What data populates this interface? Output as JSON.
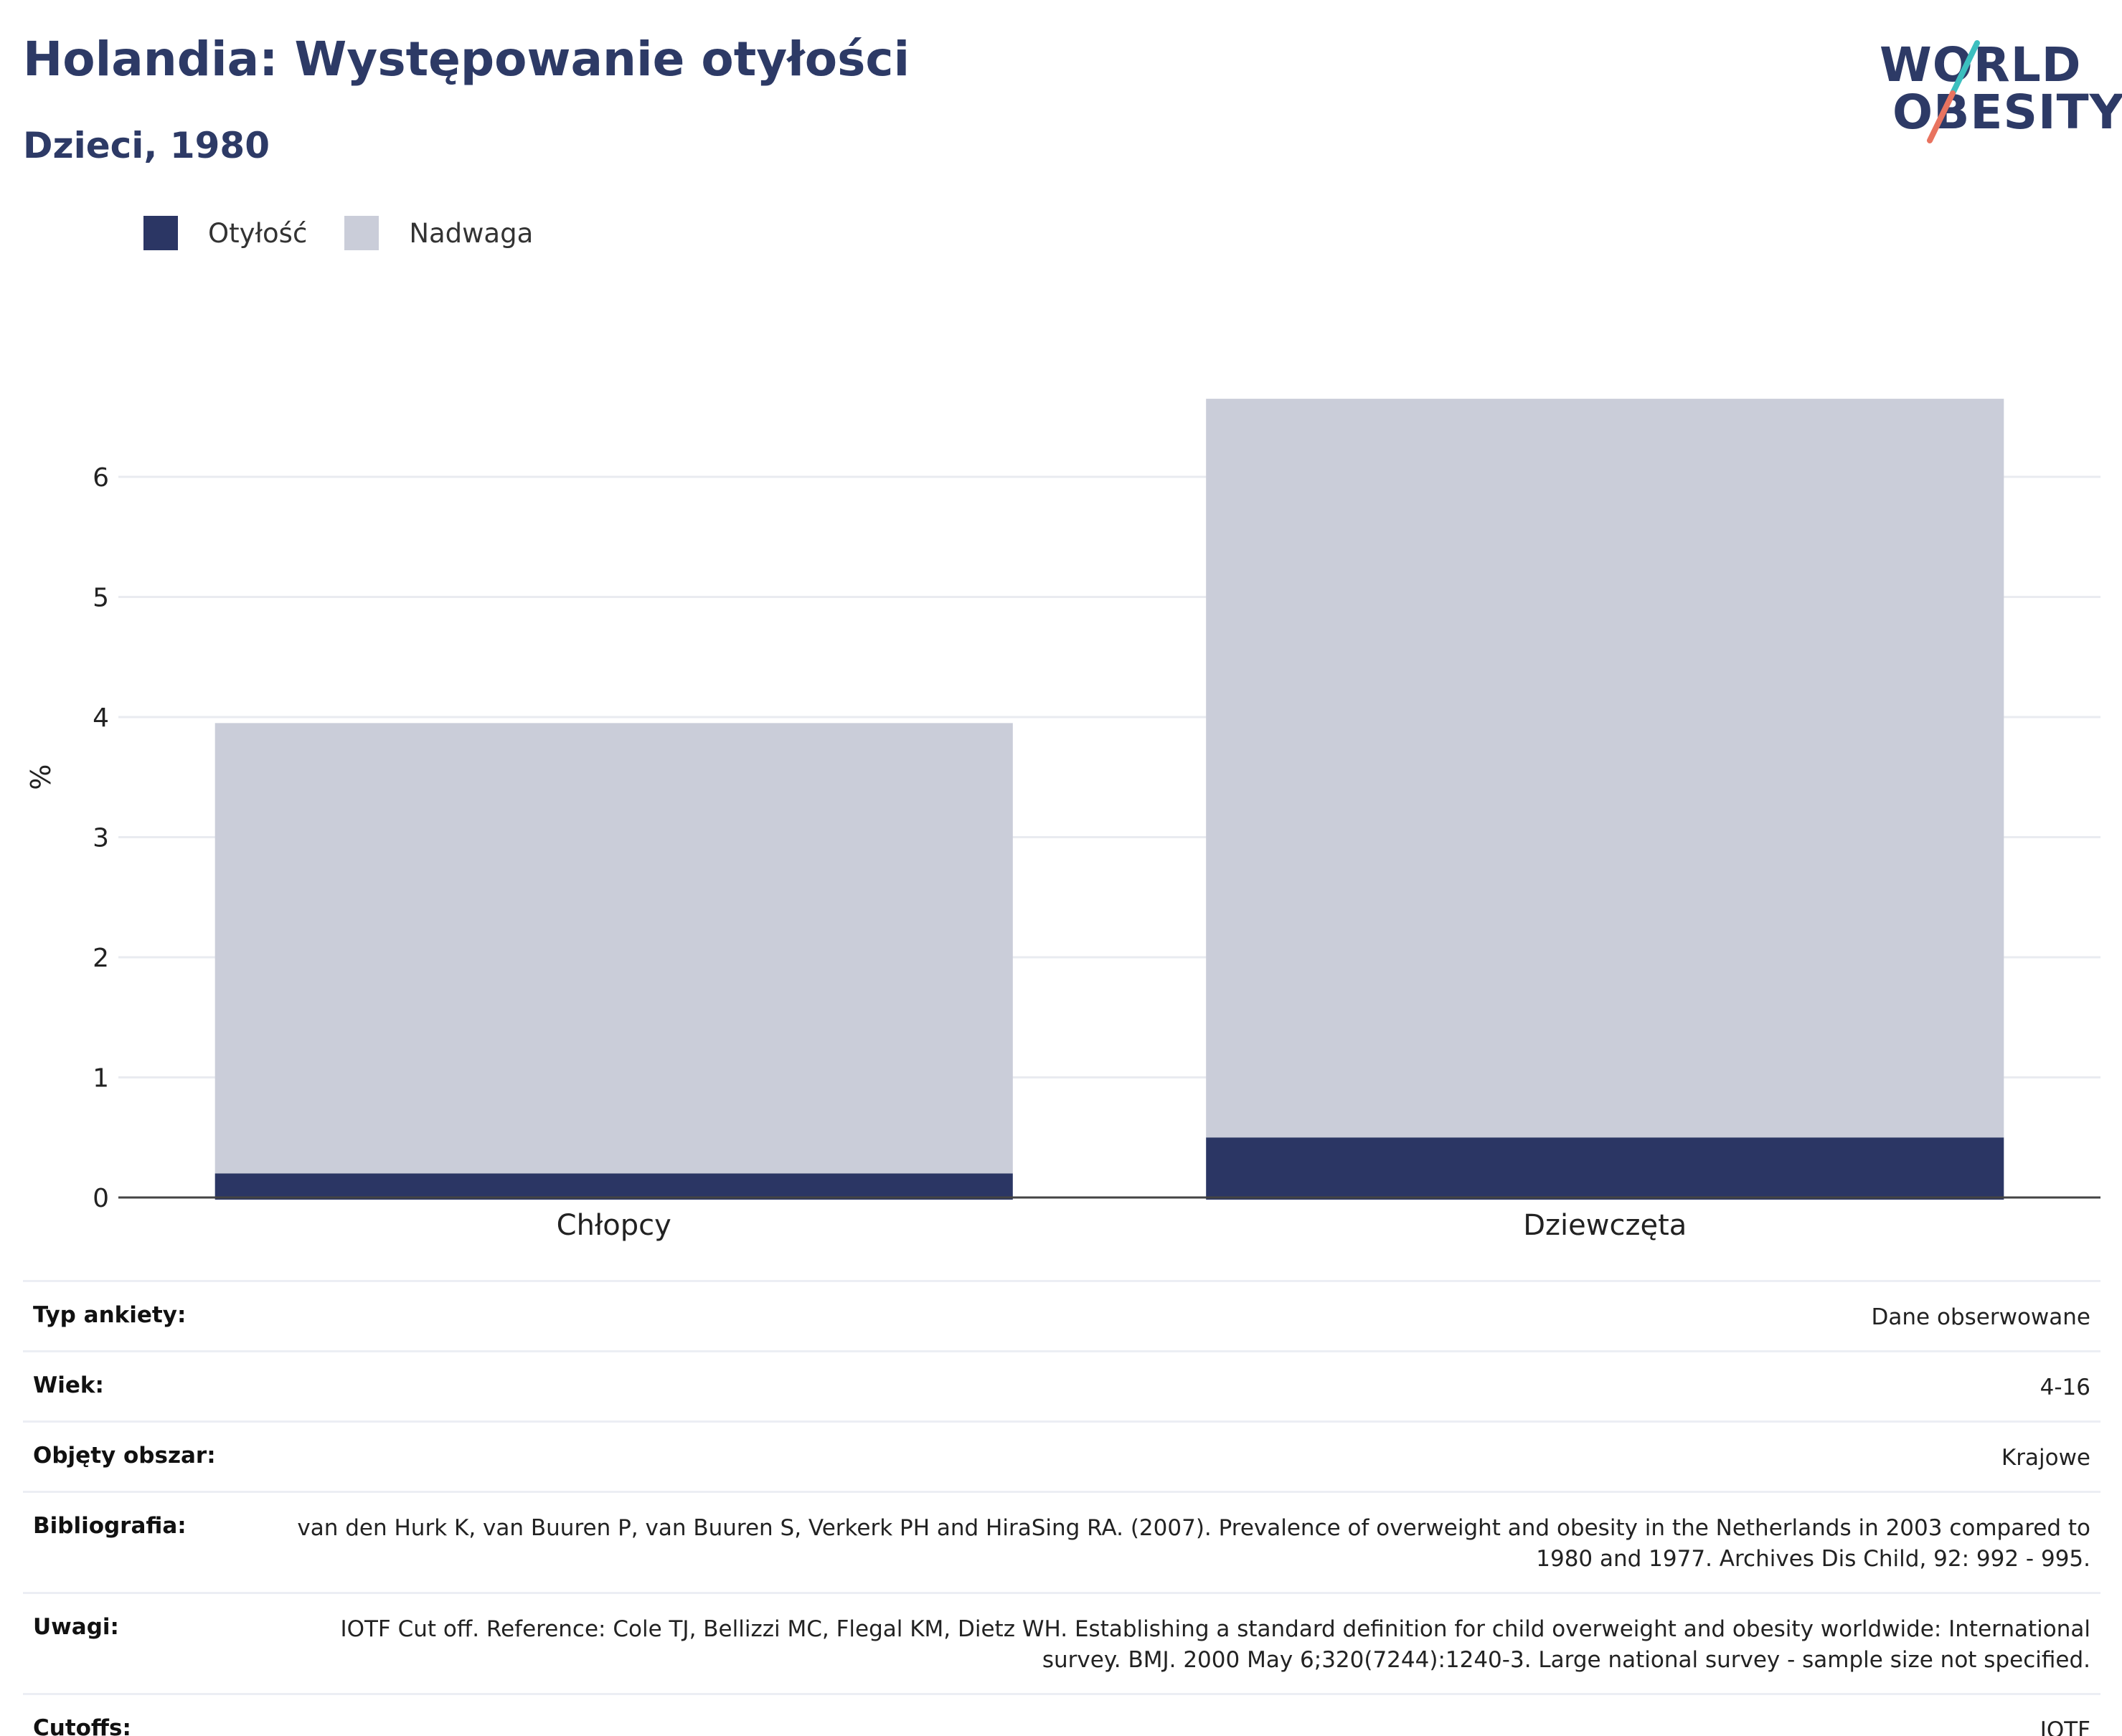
{
  "header": {
    "title": "Holandia: Występowanie otyłości",
    "subtitle": "Dzieci, 1980"
  },
  "logo": {
    "line1": "WORLD",
    "line2": "OBESITY",
    "accent_colors": [
      "#3cbfbf",
      "#e8735f"
    ]
  },
  "chart_data": {
    "type": "bar",
    "stacked": true,
    "categories": [
      "Chłopcy",
      "Dziewczęta"
    ],
    "series": [
      {
        "name": "Otyłość",
        "values": [
          0.2,
          0.5
        ],
        "color": "#2b3664"
      },
      {
        "name": "Nadwaga",
        "values": [
          3.75,
          6.15
        ],
        "color": "#cacdd9"
      }
    ],
    "ylabel": "%",
    "ylim": [
      0,
      7
    ],
    "yticks": [
      "0",
      "1",
      "2",
      "3",
      "4",
      "5",
      "6"
    ],
    "grid": true,
    "legend": "top-left"
  },
  "info": [
    {
      "key": "Typ ankiety:",
      "value": "Dane obserwowane"
    },
    {
      "key": "Wiek:",
      "value": "4-16"
    },
    {
      "key": "Objęty obszar:",
      "value": "Krajowe"
    },
    {
      "key": "Bibliografia:",
      "value": "van den Hurk K, van Buuren P, van Buuren S, Verkerk PH and HiraSing RA. (2007). Prevalence of overweight and obesity in the Netherlands in 2003 compared to 1980 and 1977. Archives Dis Child, 92: 992 - 995."
    },
    {
      "key": "Uwagi:",
      "value": "IOTF Cut off. Reference: Cole TJ, Bellizzi MC, Flegal KM, Dietz WH. Establishing a standard definition for child overweight and obesity worldwide: International survey. BMJ. 2000 May 6;320(7244):1240-3. Large national survey - sample size not specified."
    },
    {
      "key": "Cutoffs:",
      "value": "IOTF"
    }
  ]
}
